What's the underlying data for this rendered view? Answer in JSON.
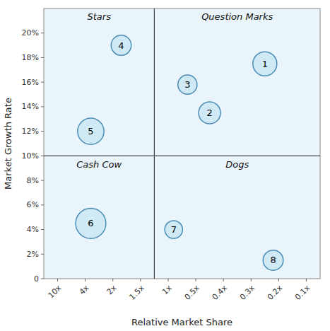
{
  "chart_data": {
    "type": "bubble",
    "x_label": "Relative Market Share",
    "y_label": "Market Growth Rate",
    "annotations": [
      "Stars",
      "Question Marks",
      "Cash Cow",
      "Dogs"
    ],
    "labels": [
      "1",
      "2",
      "3",
      "4",
      "5",
      "6",
      "7",
      "8"
    ],
    "x": [
      7.5,
      5.5,
      4.7,
      2.3,
      1.2,
      1.2,
      4.2,
      7.8
    ],
    "values": [
      17.5,
      13.5,
      15.8,
      19.0,
      12.0,
      4.5,
      4.0,
      1.5
    ],
    "sizes": [
      600,
      500,
      380,
      420,
      720,
      950,
      330,
      420
    ],
    "color": "#cce8f4",
    "dividers": {
      "x": 3.5,
      "y": 10
    },
    "xlim": [
      -0.5,
      9.5
    ],
    "ylim": [
      0,
      22
    ],
    "xticks": [
      {
        "value": 0,
        "label": "10x"
      },
      {
        "value": 1,
        "label": "4x"
      },
      {
        "value": 2,
        "label": "2x"
      },
      {
        "value": 3,
        "label": "1.5x"
      },
      {
        "value": 4,
        "label": "1x"
      },
      {
        "value": 5,
        "label": "0.5x"
      },
      {
        "value": 6,
        "label": "0.4x"
      },
      {
        "value": 7,
        "label": "0.3x"
      },
      {
        "value": 8,
        "label": "0.2x"
      },
      {
        "value": 9,
        "label": "0.1x"
      }
    ],
    "yticks": [
      0,
      {
        "value": 2,
        "label": "2%"
      },
      {
        "value": 4,
        "label": "4%"
      },
      {
        "value": 6,
        "label": "6%"
      },
      {
        "value": 8,
        "label": "8%"
      },
      {
        "value": 10,
        "label": "10%"
      },
      {
        "value": 12,
        "label": "12%"
      },
      {
        "value": 14,
        "label": "14%"
      },
      {
        "value": 16,
        "label": "16%"
      },
      {
        "value": 18,
        "label": "18%"
      },
      {
        "value": 20,
        "label": "20%"
      }
    ],
    "grid": false
  }
}
